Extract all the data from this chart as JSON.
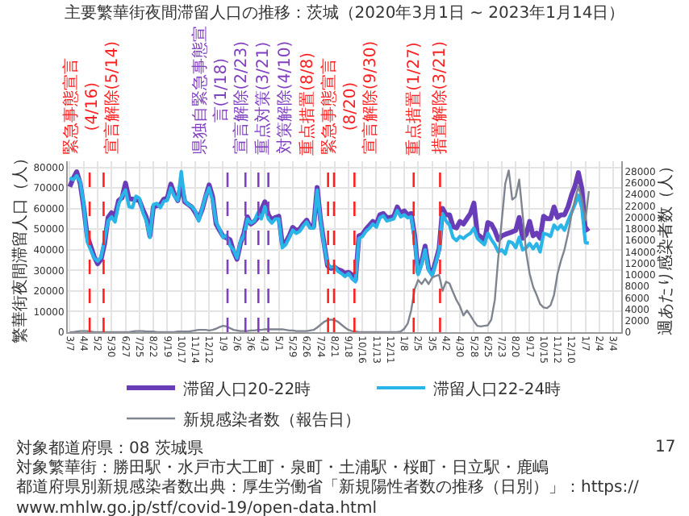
{
  "chart_data": {
    "type": "line",
    "title": "主要繁華街夜間滞留人口の推移：茨城（2020年3月1日 ~ 2023年1月14日）",
    "ylabel": "繁華街夜間滞留人口（人）",
    "y2label": "週あたり感染者数（人）",
    "x": [
      "2020-03-07",
      "2020-03-14",
      "2020-03-21",
      "2020-03-28",
      "2020-04-04",
      "2020-04-11",
      "2020-04-18",
      "2020-04-25",
      "2020-05-02",
      "2020-05-09",
      "2020-05-16",
      "2020-05-23",
      "2020-05-30",
      "2020-06-06",
      "2020-06-13",
      "2020-06-20",
      "2020-06-27",
      "2020-07-04",
      "2020-07-11",
      "2020-07-18",
      "2020-07-25",
      "2020-08-01",
      "2020-08-08",
      "2020-08-15",
      "2020-08-22",
      "2020-08-29",
      "2020-09-05",
      "2020-09-12",
      "2020-09-19",
      "2020-09-26",
      "2020-10-03",
      "2020-10-10",
      "2020-10-17",
      "2020-10-24",
      "2020-10-31",
      "2020-11-07",
      "2020-11-14",
      "2020-11-21",
      "2020-11-28",
      "2020-12-05",
      "2020-12-12",
      "2020-12-19",
      "2020-12-26",
      "2021-01-02",
      "2021-01-09",
      "2021-01-16",
      "2021-01-23",
      "2021-01-30",
      "2021-02-06",
      "2021-02-13",
      "2021-02-20",
      "2021-02-27",
      "2021-03-06",
      "2021-03-13",
      "2021-03-20",
      "2021-03-27",
      "2021-04-03",
      "2021-04-10",
      "2021-04-17",
      "2021-04-24",
      "2021-05-01",
      "2021-05-08",
      "2021-05-15",
      "2021-05-22",
      "2021-05-29",
      "2021-06-05",
      "2021-06-12",
      "2021-06-19",
      "2021-06-26",
      "2021-07-03",
      "2021-07-10",
      "2021-07-17",
      "2021-07-24",
      "2021-07-31",
      "2021-08-07",
      "2021-08-14",
      "2021-08-21",
      "2021-08-28",
      "2021-09-04",
      "2021-09-11",
      "2021-09-18",
      "2021-09-25",
      "2021-10-02",
      "2021-10-09",
      "2021-10-16",
      "2021-10-23",
      "2021-10-30",
      "2021-11-06",
      "2021-11-13",
      "2021-11-20",
      "2021-11-27",
      "2021-12-04",
      "2021-12-11",
      "2021-12-18",
      "2021-12-25",
      "2022-01-01",
      "2022-01-08",
      "2022-01-15",
      "2022-01-22",
      "2022-01-29",
      "2022-02-05",
      "2022-02-12",
      "2022-02-19",
      "2022-02-26",
      "2022-03-05",
      "2022-03-12",
      "2022-03-19",
      "2022-03-26",
      "2022-04-02",
      "2022-04-09",
      "2022-04-16",
      "2022-04-23",
      "2022-04-30",
      "2022-05-07",
      "2022-05-14",
      "2022-05-21",
      "2022-05-28",
      "2022-06-04",
      "2022-06-11",
      "2022-06-18",
      "2022-06-25",
      "2022-07-02",
      "2022-07-09",
      "2022-07-16",
      "2022-07-23",
      "2022-07-30",
      "2022-08-06",
      "2022-08-13",
      "2022-08-20",
      "2022-08-27",
      "2022-09-03",
      "2022-09-10",
      "2022-09-17",
      "2022-09-24",
      "2022-10-01",
      "2022-10-08",
      "2022-10-15",
      "2022-10-22",
      "2022-10-29",
      "2022-11-05",
      "2022-11-12",
      "2022-11-19",
      "2022-11-26",
      "2022-12-03",
      "2022-12-10",
      "2022-12-17",
      "2022-12-24",
      "2022-12-31",
      "2023-01-07",
      "2023-01-14"
    ],
    "series": [
      {
        "name": "滞留人口20-22時",
        "color": "#6a3db8",
        "values": [
          70600,
          74700,
          77900,
          72200,
          60800,
          46800,
          41800,
          36700,
          33200,
          35400,
          43000,
          55700,
          58000,
          56300,
          63900,
          65200,
          72400,
          64800,
          64600,
          64300,
          63900,
          59500,
          55700,
          46600,
          60800,
          61400,
          62000,
          64600,
          65200,
          71900,
          67100,
          63900,
          72200,
          63300,
          62000,
          60800,
          58200,
          55100,
          59500,
          65800,
          71500,
          65800,
          52500,
          49400,
          46600,
          45800,
          44900,
          39200,
          35400,
          43000,
          48100,
          56000,
          52500,
          53800,
          55700,
          59500,
          63300,
          57000,
          54400,
          55700,
          56300,
          43000,
          43700,
          46800,
          50900,
          49400,
          50000,
          52500,
          54400,
          51300,
          51300,
          70300,
          54400,
          43000,
          32300,
          31000,
          31600,
          30400,
          29800,
          28500,
          29100,
          27900,
          25300,
          46800,
          47500,
          50000,
          51900,
          53800,
          52500,
          57000,
          57600,
          55700,
          55700,
          56300,
          60800,
          57600,
          58900,
          57000,
          57600,
          46800,
          29100,
          34200,
          41800,
          31000,
          28500,
          34200,
          40500,
          60100,
          57000,
          57000,
          51300,
          50600,
          53800,
          52500,
          55100,
          57600,
          62700,
          47500,
          46200,
          43700,
          53200,
          52500,
          49400,
          44900,
          46800,
          47500,
          48100,
          48700,
          49400,
          55700,
          45600,
          47500,
          53800,
          46800,
          48100,
          45600,
          56300,
          55100,
          55100,
          60800,
          55700,
          57000,
          57000,
          60800,
          66500,
          70900,
          77500,
          69600,
          49400,
          50600
        ]
      },
      {
        "name": "滞留人口22-24時",
        "color": "#29b5e8",
        "values": [
          75000,
          74000,
          76000,
          73000,
          62000,
          44000,
          40000,
          36000,
          34500,
          36500,
          45000,
          54000,
          56000,
          53500,
          62000,
          66000,
          69000,
          61000,
          60500,
          66000,
          65000,
          58000,
          54000,
          46000,
          62000,
          62500,
          60500,
          63500,
          64000,
          70000,
          66000,
          64000,
          78000,
          64000,
          62000,
          61000,
          59000,
          54000,
          60000,
          66000,
          70000,
          64000,
          53500,
          50000,
          46000,
          47000,
          42000,
          40000,
          36000,
          44000,
          47000,
          55000,
          53000,
          54000,
          58000,
          55000,
          61000,
          55000,
          53000,
          55000,
          55000,
          41000,
          42500,
          46000,
          49500,
          48000,
          49000,
          51500,
          53500,
          50500,
          50500,
          69000,
          54000,
          42000,
          33000,
          31500,
          32000,
          29500,
          28500,
          27000,
          28500,
          26000,
          24500,
          45500,
          46500,
          49000,
          50500,
          52500,
          51000,
          55500,
          56500,
          54000,
          54500,
          55000,
          59000,
          56000,
          57000,
          55500,
          56000,
          45000,
          28000,
          33000,
          40000,
          30000,
          27500,
          33000,
          39500,
          57500,
          54000,
          52000,
          46000,
          44500,
          46500,
          45500,
          47000,
          48000,
          50500,
          45500,
          44000,
          42500,
          48000,
          45000,
          42500,
          39000,
          40000,
          38000,
          44000,
          43500,
          41000,
          46000,
          40000,
          41000,
          43000,
          40500,
          43000,
          39000,
          48000,
          47500,
          46500,
          52000,
          50000,
          52000,
          49500,
          54000,
          58000,
          62000,
          66500,
          60000,
          43500,
          43200
        ]
      },
      {
        "name": "新規感染者数（報告日）",
        "color": "#7f8590",
        "axis": "y2",
        "values": [
          0,
          0,
          100,
          200,
          200,
          200,
          100,
          0,
          0,
          0,
          0,
          0,
          0,
          0,
          0,
          0,
          0,
          0,
          100,
          200,
          200,
          200,
          100,
          100,
          100,
          0,
          0,
          0,
          0,
          0,
          0,
          100,
          100,
          100,
          100,
          200,
          300,
          400,
          400,
          400,
          300,
          400,
          600,
          900,
          1100,
          1000,
          700,
          400,
          300,
          200,
          200,
          200,
          300,
          300,
          400,
          400,
          500,
          500,
          500,
          500,
          500,
          500,
          400,
          300,
          300,
          200,
          200,
          200,
          200,
          300,
          400,
          800,
          1300,
          1800,
          2100,
          2200,
          2100,
          1800,
          1300,
          800,
          400,
          200,
          100,
          0,
          0,
          0,
          0,
          0,
          0,
          0,
          0,
          0,
          0,
          0,
          0,
          100,
          600,
          1500,
          3800,
          7500,
          9100,
          8400,
          9300,
          8400,
          9500,
          9800,
          10000,
          7200,
          8800,
          8500,
          7000,
          5600,
          4500,
          2900,
          3800,
          2900,
          1900,
          1100,
          1000,
          1100,
          1200,
          2200,
          5600,
          13000,
          19500,
          25900,
          28200,
          23100,
          23600,
          26600,
          20400,
          13900,
          10200,
          7900,
          6500,
          4900,
          4300,
          4200,
          4700,
          6500,
          10200,
          12500,
          14400,
          17100,
          20400,
          23100,
          25400,
          23100,
          19500,
          24600
        ]
      }
    ],
    "xlim": [
      "2020-03-03",
      "2023-03-20"
    ],
    "xticks": [
      {
        "value": "2020-03-07",
        "label": "3/7"
      },
      {
        "value": "2020-04-04",
        "label": "4/4"
      },
      {
        "value": "2020-05-02",
        "label": "5/2"
      },
      {
        "value": "2020-05-30",
        "label": "5/30"
      },
      {
        "value": "2020-06-27",
        "label": "6/27"
      },
      {
        "value": "2020-07-25",
        "label": "7/25"
      },
      {
        "value": "2020-08-22",
        "label": "8/22"
      },
      {
        "value": "2020-09-19",
        "label": "9/19"
      },
      {
        "value": "2020-10-17",
        "label": "10/17"
      },
      {
        "value": "2020-11-14",
        "label": "11/14"
      },
      {
        "value": "2020-12-12",
        "label": "12/12"
      },
      {
        "value": "2021-01-09",
        "label": "1/9"
      },
      {
        "value": "2021-02-06",
        "label": "2/6"
      },
      {
        "value": "2021-03-06",
        "label": "3/6"
      },
      {
        "value": "2021-04-03",
        "label": "4/3"
      },
      {
        "value": "2021-05-01",
        "label": "5/1"
      },
      {
        "value": "2021-05-29",
        "label": "5/29"
      },
      {
        "value": "2021-06-26",
        "label": "6/26"
      },
      {
        "value": "2021-07-24",
        "label": "7/24"
      },
      {
        "value": "2021-08-21",
        "label": "8/21"
      },
      {
        "value": "2021-09-18",
        "label": "9/18"
      },
      {
        "value": "2021-10-16",
        "label": "10/16"
      },
      {
        "value": "2021-11-13",
        "label": "11/13"
      },
      {
        "value": "2021-12-11",
        "label": "12/11"
      },
      {
        "value": "2022-01-08",
        "label": "1/8"
      },
      {
        "value": "2022-02-05",
        "label": "2/5"
      },
      {
        "value": "2022-03-05",
        "label": "3/5"
      },
      {
        "value": "2022-04-02",
        "label": "4/2"
      },
      {
        "value": "2022-04-30",
        "label": "4/30"
      },
      {
        "value": "2022-05-28",
        "label": "5/28"
      },
      {
        "value": "2022-06-25",
        "label": "6/25"
      },
      {
        "value": "2022-07-23",
        "label": "7/23"
      },
      {
        "value": "2022-08-20",
        "label": "8/20"
      },
      {
        "value": "2022-09-17",
        "label": "9/17"
      },
      {
        "value": "2022-10-15",
        "label": "10/15"
      },
      {
        "value": "2022-11-12",
        "label": "11/12"
      },
      {
        "value": "2022-12-10",
        "label": "12/10"
      },
      {
        "value": "2023-01-07",
        "label": "1/7"
      },
      {
        "value": "2023-02-04",
        "label": "2/4"
      },
      {
        "value": "2023-03-04",
        "label": "3/4"
      }
    ],
    "ylim": [
      0,
      83000
    ],
    "yticks": [
      0,
      10000,
      20000,
      30000,
      40000,
      50000,
      60000,
      70000,
      80000
    ],
    "y2lim": [
      0,
      29800
    ],
    "y2ticks": [
      0,
      2000,
      4000,
      6000,
      8000,
      10000,
      12000,
      14000,
      16000,
      18000,
      20000,
      22000,
      24000,
      26000,
      28000
    ],
    "ref_lines": [
      {
        "axis": "x",
        "value": "2020-04-16",
        "label": "緊急事態宣言(4/16)",
        "color": "#ff2020",
        "line_style": "dashed"
      },
      {
        "axis": "x",
        "value": "2020-05-14",
        "label": "宣言解除(5/14)",
        "color": "#ff2020",
        "line_style": "dashed"
      },
      {
        "axis": "x",
        "value": "2021-01-18",
        "label": "県独自緊急事態宣言(1/18)",
        "color": "#8040c0",
        "line_style": "dashed"
      },
      {
        "axis": "x",
        "value": "2021-02-23",
        "label": "宣言解除(2/23)",
        "color": "#8040c0",
        "line_style": "dashed"
      },
      {
        "axis": "x",
        "value": "2021-03-21",
        "label": "重点対策(3/21)",
        "color": "#8040c0",
        "line_style": "dashed"
      },
      {
        "axis": "x",
        "value": "2021-04-10",
        "label": "対策解除(4/10)",
        "color": "#8040c0",
        "line_style": "dashed"
      },
      {
        "axis": "x",
        "value": "2021-08-08",
        "label": "重点措置(8/8)",
        "color": "#ff2020",
        "line_style": "dashed"
      },
      {
        "axis": "x",
        "value": "2021-08-20",
        "label": "緊急事態宣言(8/20)",
        "color": "#ff2020",
        "line_style": "dashed"
      },
      {
        "axis": "x",
        "value": "2021-09-30",
        "label": "宣言解除(9/30)",
        "color": "#ff2020",
        "line_style": "dashed"
      },
      {
        "axis": "x",
        "value": "2022-01-27",
        "label": "重点措置(1/27)",
        "color": "#ff2020",
        "line_style": "dashed"
      },
      {
        "axis": "x",
        "value": "2022-03-21",
        "label": "措置解除(3/21)",
        "color": "#ff2020",
        "line_style": "dashed"
      }
    ],
    "annotations": [
      "対象都道府県：08 茨城県",
      "対象繁華街：勝田駅・水戸市大工町・泉町・土浦駅・桜町・日立駅・鹿嶋",
      "都道府県別新規感染者数出典：厚生労働省「新規陽性者数の推移（日別）」：https://www.mhlw.go.jp/stf/covid-19/open-data.html",
      "17"
    ],
    "grid": true,
    "legend": "bottom",
    "line_style": "solid",
    "marker": "none"
  }
}
